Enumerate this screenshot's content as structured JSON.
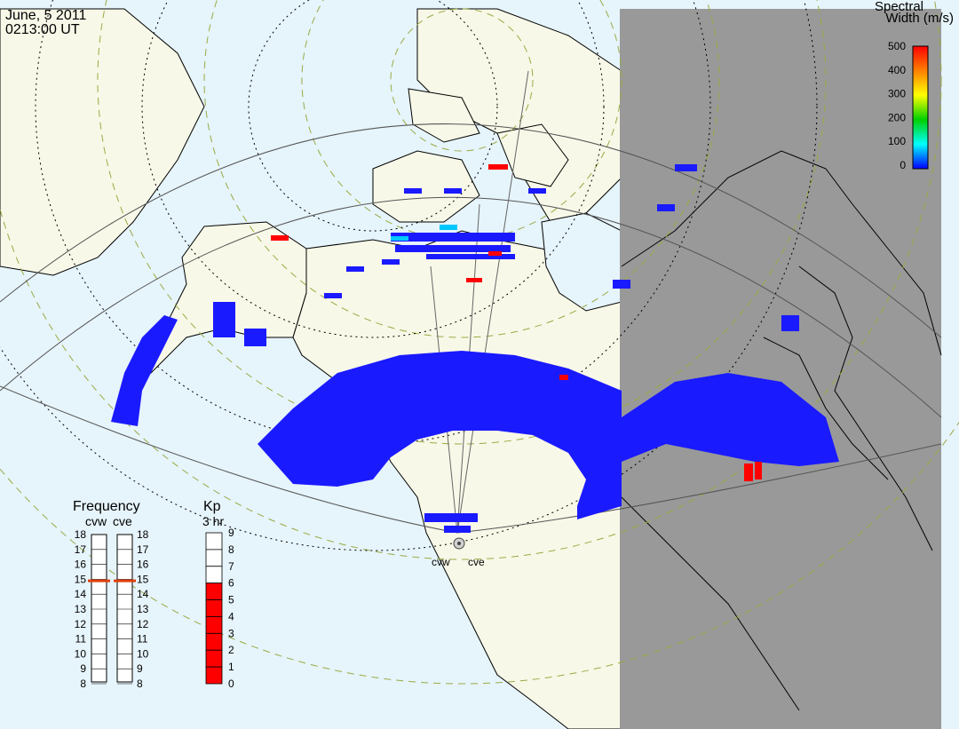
{
  "header": {
    "date": "June, 5 2011",
    "time": "0213:00 UT"
  },
  "colorbar": {
    "title_line1": "Spectral",
    "title_line2": "Width (m/s)",
    "ticks": [
      "500",
      "400",
      "300",
      "200",
      "100",
      "0"
    ],
    "scale_colors": [
      "#ff0000",
      "#ff8000",
      "#ffff00",
      "#00d000",
      "#00ffff",
      "#0000ff"
    ]
  },
  "frequency_panel": {
    "title": "Frequency",
    "radars": [
      "cvw",
      "cve"
    ],
    "ticks": [
      "18",
      "17",
      "16",
      "15",
      "14",
      "13",
      "12",
      "11",
      "10",
      "9",
      "8"
    ],
    "cvw_freq_mhz": 14.9,
    "cve_freq_mhz": 14.9,
    "marker_color": "#e0400a"
  },
  "kp_panel": {
    "title": "Kp",
    "subtitle": "3 hr",
    "ticks": [
      "9",
      "8",
      "7",
      "6",
      "5",
      "4",
      "3",
      "2",
      "1",
      "0"
    ],
    "value": 6,
    "fill_color": "#ff0000"
  },
  "map": {
    "ocean_color": "#e6f4fb",
    "land_color": "#f8f8e8",
    "night_color": "#999999",
    "radar_site_labels": [
      "cvw",
      "cve"
    ]
  }
}
